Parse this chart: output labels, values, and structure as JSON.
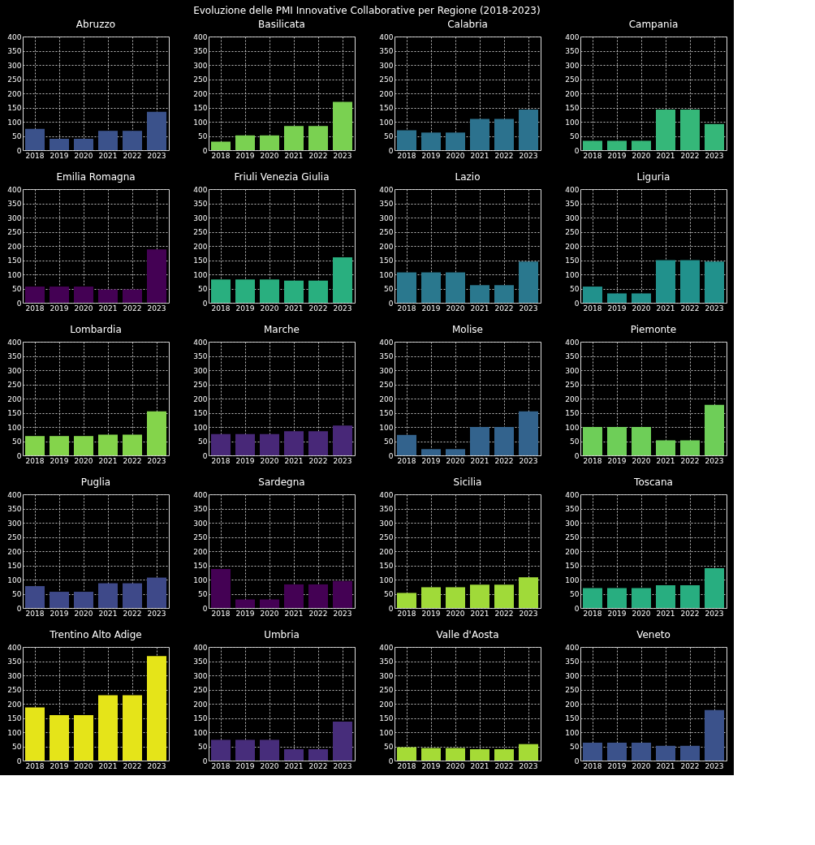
{
  "chart_data": [
    {
      "type": "bar",
      "title": "Abruzzo",
      "annotations": [
        "Evoluzione delle PMI Innovative Collaborative per Regione (2018-2023)"
      ],
      "categories": [
        "2018",
        "2019",
        "2020",
        "2021",
        "2022",
        "2023"
      ],
      "series": [
        {
          "color": "#3b528b",
          "values": [
            75,
            40,
            40,
            68,
            68,
            135
          ]
        }
      ],
      "ylim": [
        0,
        400
      ],
      "yticks": [
        0,
        50,
        100,
        150,
        200,
        250,
        300,
        350,
        400
      ],
      "grid": true
    },
    {
      "type": "bar",
      "title": "Basilicata",
      "categories": [
        "2018",
        "2019",
        "2020",
        "2021",
        "2022",
        "2023"
      ],
      "series": [
        {
          "color": "#7ad151",
          "values": [
            30,
            52,
            52,
            85,
            85,
            170
          ]
        }
      ],
      "ylim": [
        0,
        400
      ],
      "yticks": [
        0,
        50,
        100,
        150,
        200,
        250,
        300,
        350,
        400
      ],
      "grid": true
    },
    {
      "type": "bar",
      "title": "Calabria",
      "categories": [
        "2018",
        "2019",
        "2020",
        "2021",
        "2022",
        "2023"
      ],
      "series": [
        {
          "color": "#2c728e",
          "values": [
            70,
            62,
            62,
            110,
            110,
            143
          ]
        }
      ],
      "ylim": [
        0,
        400
      ],
      "yticks": [
        0,
        50,
        100,
        150,
        200,
        250,
        300,
        350,
        400
      ],
      "grid": true
    },
    {
      "type": "bar",
      "title": "Campania",
      "categories": [
        "2018",
        "2019",
        "2020",
        "2021",
        "2022",
        "2023"
      ],
      "series": [
        {
          "color": "#35b779",
          "values": [
            33,
            33,
            33,
            143,
            143,
            92
          ]
        }
      ],
      "ylim": [
        0,
        400
      ],
      "yticks": [
        0,
        50,
        100,
        150,
        200,
        250,
        300,
        350,
        400
      ],
      "grid": true
    },
    {
      "type": "bar",
      "title": "Emilia Romagna",
      "categories": [
        "2018",
        "2019",
        "2020",
        "2021",
        "2022",
        "2023"
      ],
      "series": [
        {
          "color": "#440154",
          "values": [
            57,
            57,
            57,
            47,
            47,
            188
          ]
        }
      ],
      "ylim": [
        0,
        400
      ],
      "yticks": [
        0,
        50,
        100,
        150,
        200,
        250,
        300,
        350,
        400
      ],
      "grid": true
    },
    {
      "type": "bar",
      "title": "Friuli Venezia Giulia",
      "categories": [
        "2018",
        "2019",
        "2020",
        "2021",
        "2022",
        "2023"
      ],
      "series": [
        {
          "color": "#29af7f",
          "values": [
            82,
            82,
            82,
            78,
            78,
            160
          ]
        }
      ],
      "ylim": [
        0,
        400
      ],
      "yticks": [
        0,
        50,
        100,
        150,
        200,
        250,
        300,
        350,
        400
      ],
      "grid": true
    },
    {
      "type": "bar",
      "title": "Lazio",
      "categories": [
        "2018",
        "2019",
        "2020",
        "2021",
        "2022",
        "2023"
      ],
      "series": [
        {
          "color": "#2a788e",
          "values": [
            107,
            107,
            107,
            62,
            62,
            145
          ]
        }
      ],
      "ylim": [
        0,
        400
      ],
      "yticks": [
        0,
        50,
        100,
        150,
        200,
        250,
        300,
        350,
        400
      ],
      "grid": true
    },
    {
      "type": "bar",
      "title": "Liguria",
      "categories": [
        "2018",
        "2019",
        "2020",
        "2021",
        "2022",
        "2023"
      ],
      "series": [
        {
          "color": "#21918c",
          "values": [
            57,
            33,
            33,
            150,
            150,
            145
          ]
        }
      ],
      "ylim": [
        0,
        400
      ],
      "yticks": [
        0,
        50,
        100,
        150,
        200,
        250,
        300,
        350,
        400
      ],
      "grid": true
    },
    {
      "type": "bar",
      "title": "Lombardia",
      "categories": [
        "2018",
        "2019",
        "2020",
        "2021",
        "2022",
        "2023"
      ],
      "series": [
        {
          "color": "#84d44b",
          "values": [
            68,
            68,
            68,
            73,
            73,
            155
          ]
        }
      ],
      "ylim": [
        0,
        400
      ],
      "yticks": [
        0,
        50,
        100,
        150,
        200,
        250,
        300,
        350,
        400
      ],
      "grid": true
    },
    {
      "type": "bar",
      "title": "Marche",
      "categories": [
        "2018",
        "2019",
        "2020",
        "2021",
        "2022",
        "2023"
      ],
      "series": [
        {
          "color": "#482878",
          "values": [
            75,
            75,
            75,
            85,
            85,
            105
          ]
        }
      ],
      "ylim": [
        0,
        400
      ],
      "yticks": [
        0,
        50,
        100,
        150,
        200,
        250,
        300,
        350,
        400
      ],
      "grid": true
    },
    {
      "type": "bar",
      "title": "Molise",
      "categories": [
        "2018",
        "2019",
        "2020",
        "2021",
        "2022",
        "2023"
      ],
      "series": [
        {
          "color": "#33638d",
          "values": [
            72,
            22,
            22,
            100,
            100,
            155
          ]
        }
      ],
      "ylim": [
        0,
        400
      ],
      "yticks": [
        0,
        50,
        100,
        150,
        200,
        250,
        300,
        350,
        400
      ],
      "grid": true
    },
    {
      "type": "bar",
      "title": "Piemonte",
      "categories": [
        "2018",
        "2019",
        "2020",
        "2021",
        "2022",
        "2023"
      ],
      "series": [
        {
          "color": "#6ece58",
          "values": [
            100,
            100,
            100,
            53,
            53,
            178
          ]
        }
      ],
      "ylim": [
        0,
        400
      ],
      "yticks": [
        0,
        50,
        100,
        150,
        200,
        250,
        300,
        350,
        400
      ],
      "grid": true
    },
    {
      "type": "bar",
      "title": "Puglia",
      "categories": [
        "2018",
        "2019",
        "2020",
        "2021",
        "2022",
        "2023"
      ],
      "series": [
        {
          "color": "#3e4989",
          "values": [
            77,
            57,
            57,
            87,
            87,
            107
          ]
        }
      ],
      "ylim": [
        0,
        400
      ],
      "yticks": [
        0,
        50,
        100,
        150,
        200,
        250,
        300,
        350,
        400
      ],
      "grid": true
    },
    {
      "type": "bar",
      "title": "Sardegna",
      "categories": [
        "2018",
        "2019",
        "2020",
        "2021",
        "2022",
        "2023"
      ],
      "series": [
        {
          "color": "#440154",
          "values": [
            137,
            30,
            30,
            83,
            83,
            95
          ]
        }
      ],
      "ylim": [
        0,
        400
      ],
      "yticks": [
        0,
        50,
        100,
        150,
        200,
        250,
        300,
        350,
        400
      ],
      "grid": true
    },
    {
      "type": "bar",
      "title": "Sicilia",
      "categories": [
        "2018",
        "2019",
        "2020",
        "2021",
        "2022",
        "2023"
      ],
      "series": [
        {
          "color": "#a0da39",
          "values": [
            53,
            73,
            73,
            82,
            82,
            108
          ]
        }
      ],
      "ylim": [
        0,
        400
      ],
      "yticks": [
        0,
        50,
        100,
        150,
        200,
        250,
        300,
        350,
        400
      ],
      "grid": true
    },
    {
      "type": "bar",
      "title": "Toscana",
      "categories": [
        "2018",
        "2019",
        "2020",
        "2021",
        "2022",
        "2023"
      ],
      "series": [
        {
          "color": "#28ae80",
          "values": [
            70,
            70,
            70,
            80,
            80,
            140
          ]
        }
      ],
      "ylim": [
        0,
        400
      ],
      "yticks": [
        0,
        50,
        100,
        150,
        200,
        250,
        300,
        350,
        400
      ],
      "grid": true
    },
    {
      "type": "bar",
      "title": "Trentino Alto Adige",
      "categories": [
        "2018",
        "2019",
        "2020",
        "2021",
        "2022",
        "2023"
      ],
      "series": [
        {
          "color": "#e5e419",
          "values": [
            187,
            160,
            160,
            230,
            230,
            368
          ]
        }
      ],
      "ylim": [
        0,
        400
      ],
      "yticks": [
        0,
        50,
        100,
        150,
        200,
        250,
        300,
        350,
        400
      ],
      "grid": true
    },
    {
      "type": "bar",
      "title": "Umbria",
      "categories": [
        "2018",
        "2019",
        "2020",
        "2021",
        "2022",
        "2023"
      ],
      "series": [
        {
          "color": "#472d7b",
          "values": [
            73,
            73,
            73,
            40,
            40,
            137
          ]
        }
      ],
      "ylim": [
        0,
        400
      ],
      "yticks": [
        0,
        50,
        100,
        150,
        200,
        250,
        300,
        350,
        400
      ],
      "grid": true
    },
    {
      "type": "bar",
      "title": "Valle d'Aosta",
      "categories": [
        "2018",
        "2019",
        "2020",
        "2021",
        "2022",
        "2023"
      ],
      "series": [
        {
          "color": "#a5db36",
          "values": [
            47,
            44,
            44,
            40,
            40,
            58
          ]
        }
      ],
      "ylim": [
        0,
        400
      ],
      "yticks": [
        0,
        50,
        100,
        150,
        200,
        250,
        300,
        350,
        400
      ],
      "grid": true
    },
    {
      "type": "bar",
      "title": "Veneto",
      "categories": [
        "2018",
        "2019",
        "2020",
        "2021",
        "2022",
        "2023"
      ],
      "series": [
        {
          "color": "#3b528b",
          "values": [
            63,
            63,
            63,
            52,
            52,
            178
          ]
        }
      ],
      "ylim": [
        0,
        400
      ],
      "yticks": [
        0,
        50,
        100,
        150,
        200,
        250,
        300,
        350,
        400
      ],
      "grid": true
    }
  ]
}
